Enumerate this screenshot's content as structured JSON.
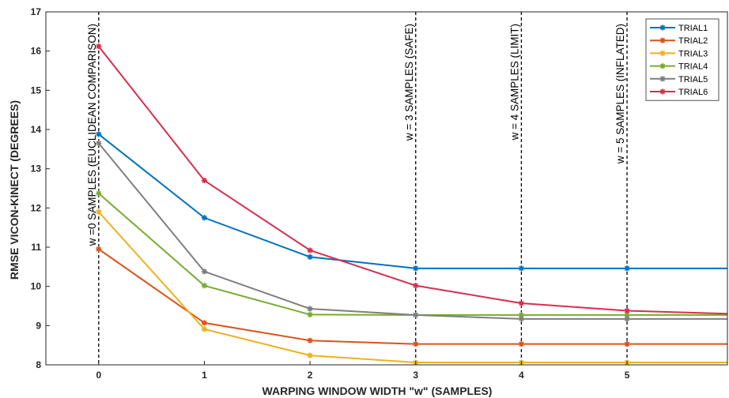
{
  "chart_data": {
    "type": "line",
    "title": "",
    "xlabel": "WARPING WINDOW WIDTH \"w\" (SAMPLES)",
    "ylabel": "RMSE  VICON-KINECT  (DEGREES)",
    "xlim": [
      -0.5,
      5.95
    ],
    "ylim": [
      8,
      17
    ],
    "x": [
      0,
      1,
      2,
      3,
      4,
      5,
      6
    ],
    "xticks": [
      0,
      1,
      2,
      3,
      4,
      5
    ],
    "yticks": [
      8,
      9,
      10,
      11,
      12,
      13,
      14,
      15,
      16,
      17
    ],
    "grid": false,
    "legend_position": "top-right",
    "series": [
      {
        "name": "TRIAL1",
        "color": "#0072BD",
        "values": [
          13.88,
          11.75,
          10.75,
          10.46,
          10.46,
          10.46,
          10.46
        ]
      },
      {
        "name": "TRIAL2",
        "color": "#D95319",
        "values": [
          10.95,
          9.07,
          8.62,
          8.53,
          8.53,
          8.53,
          8.53
        ]
      },
      {
        "name": "TRIAL3",
        "color": "#EDB120",
        "values": [
          11.9,
          8.91,
          8.24,
          8.06,
          8.06,
          8.06,
          8.06
        ]
      },
      {
        "name": "TRIAL4",
        "color": "#77AC30",
        "values": [
          12.37,
          10.02,
          9.28,
          9.27,
          9.27,
          9.27,
          9.27
        ]
      },
      {
        "name": "TRIAL5",
        "color": "#7F7F7F",
        "values": [
          13.65,
          10.38,
          9.43,
          9.27,
          9.17,
          9.17,
          9.17
        ]
      },
      {
        "name": "TRIAL6",
        "color": "#D62F4E",
        "values": [
          16.12,
          12.7,
          10.92,
          10.02,
          9.57,
          9.38,
          9.3
        ]
      }
    ],
    "vlines": [
      {
        "x": 0,
        "label": "w =0 SAMPLES (EUCLIDEAN COMPARISON)"
      },
      {
        "x": 3,
        "label": "w = 3 SAMPLES (SAFE)"
      },
      {
        "x": 4,
        "label": "w = 4 SAMPLES (LIMIT)"
      },
      {
        "x": 5,
        "label": "w = 5 SAMPLES (INFLATED)"
      }
    ]
  }
}
